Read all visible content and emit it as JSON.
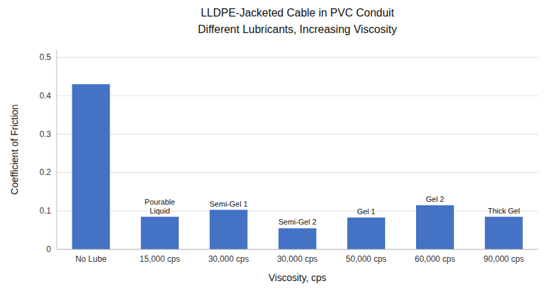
{
  "chart_data": {
    "type": "bar",
    "title": "LLDPE-Jacketed Cable in PVC Conduit",
    "subtitle": "Different Lubricants, Increasing Viscosity",
    "x_label": "Viscosity, cps",
    "y_label": "Coefficient of Friction",
    "categories": [
      "No Lube",
      "15,000 cps",
      "30,000 cps",
      "30,000 cps",
      "50,000 cps",
      "60,000 cps",
      "90,000 cps"
    ],
    "values": [
      0.43,
      0.085,
      0.103,
      0.055,
      0.083,
      0.115,
      0.085
    ],
    "annotations": [
      null,
      "Pourable\nLiquid",
      "Semi-Gel 1",
      "Semi-Gel 2",
      "Gel 1",
      "Gel 2",
      "Thick Gel"
    ],
    "color": "#4472C4",
    "ylim": [
      0,
      0.52
    ],
    "yticks": [
      0,
      0.1,
      0.2,
      0.3,
      0.4,
      0.5
    ],
    "grid": true
  }
}
